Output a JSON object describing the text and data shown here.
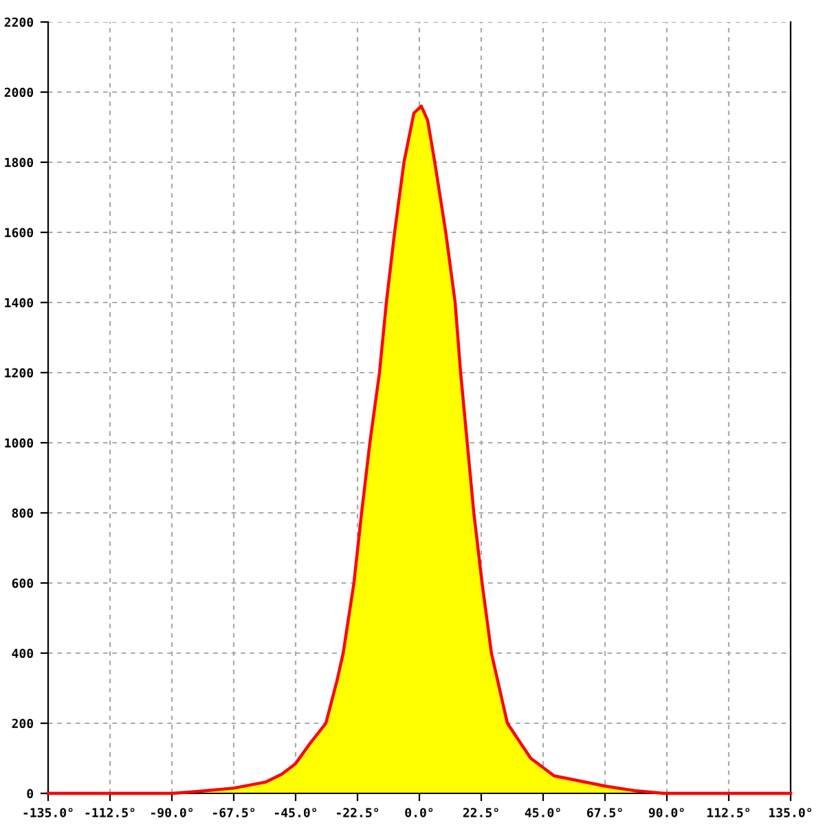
{
  "chart_data": {
    "type": "area",
    "series": [
      {
        "color": "#ffff00",
        "x": [
          -90,
          -80,
          -67.5,
          -56,
          -50,
          -45,
          -40,
          -34,
          -30,
          -27.7,
          -23.8,
          -21,
          -18,
          -14.5,
          -12,
          -9,
          -5.6,
          -2,
          0.7,
          3,
          5.6,
          9.6,
          13,
          15,
          17.4,
          19.8,
          22.8,
          26.2,
          32,
          40.5,
          49,
          68,
          78,
          89
        ],
        "values": [
          0,
          6,
          15,
          32,
          55,
          85,
          140,
          200,
          320,
          400,
          600,
          800,
          1000,
          1200,
          1400,
          1600,
          1800,
          1940,
          1960,
          1920,
          1800,
          1600,
          1400,
          1200,
          1000,
          800,
          600,
          400,
          200,
          100,
          50,
          20,
          8,
          0
        ]
      },
      {
        "type": "line",
        "color": "#ff0000",
        "x": [
          -135,
          -90,
          -80,
          -67.5,
          -56,
          -50,
          -45,
          -40,
          -34,
          -30,
          -27.7,
          -23.8,
          -21,
          -18,
          -14.5,
          -12,
          -9,
          -5.6,
          -2,
          0.7,
          3,
          5.6,
          9.6,
          13,
          15,
          17.4,
          19.8,
          22.8,
          26.2,
          32,
          40.5,
          49,
          68,
          78,
          89,
          135
        ],
        "values": [
          0,
          0,
          6,
          15,
          32,
          55,
          85,
          140,
          200,
          320,
          400,
          600,
          800,
          1000,
          1200,
          1400,
          1600,
          1800,
          1940,
          1960,
          1920,
          1800,
          1600,
          1400,
          1200,
          1000,
          800,
          600,
          400,
          200,
          100,
          50,
          20,
          8,
          0,
          0
        ]
      }
    ],
    "xlim": [
      -135,
      135
    ],
    "xticks": [
      {
        "value": -135,
        "label": "-135.0°"
      },
      {
        "value": -112.5,
        "label": "-112.5°"
      },
      {
        "value": -90,
        "label": "-90.0°"
      },
      {
        "value": -67.5,
        "label": "-67.5°"
      },
      {
        "value": -45,
        "label": "-45.0°"
      },
      {
        "value": -22.5,
        "label": "-22.5°"
      },
      {
        "value": 0,
        "label": "0.0°"
      },
      {
        "value": 22.5,
        "label": "22.5°"
      },
      {
        "value": 45,
        "label": "45.0°"
      },
      {
        "value": 67.5,
        "label": "67.5°"
      },
      {
        "value": 90,
        "label": "90.0°"
      },
      {
        "value": 112.5,
        "label": "112.5°"
      },
      {
        "value": 135,
        "label": "135.0°"
      }
    ],
    "ylim": [
      0,
      2200
    ],
    "yticks": [
      0,
      200,
      400,
      600,
      800,
      1000,
      1200,
      1400,
      1600,
      1800,
      2000,
      2200
    ],
    "grid": true,
    "legend": false
  }
}
